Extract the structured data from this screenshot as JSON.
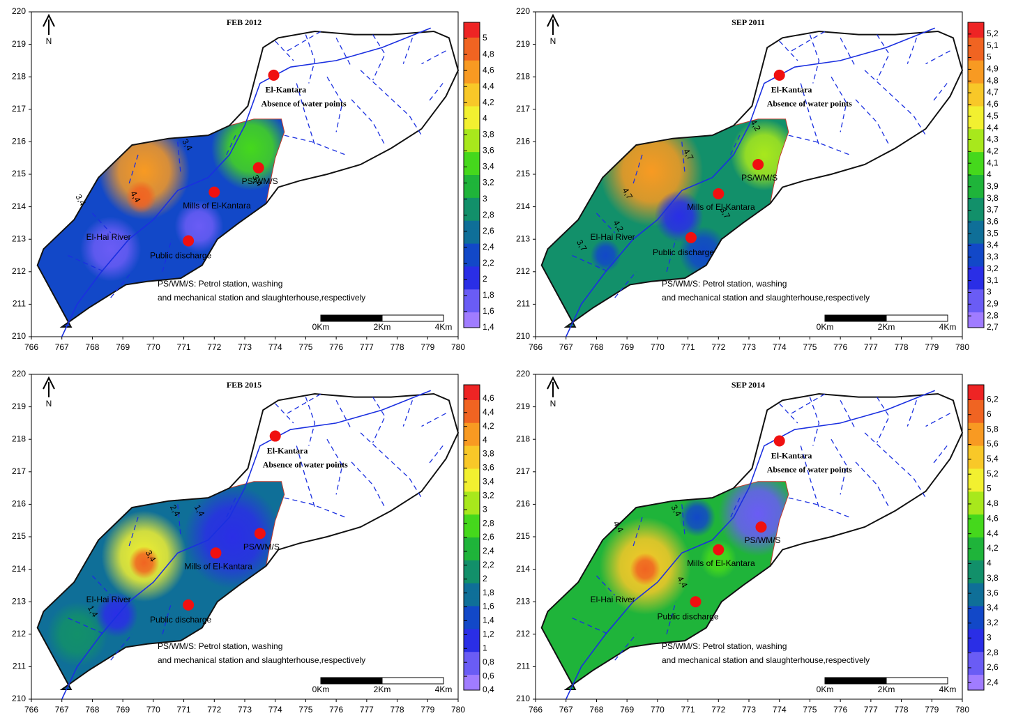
{
  "colormap": [
    "#a07cff",
    "#6a5cf5",
    "#2a2ee6",
    "#1248c8",
    "#0f6f98",
    "#12906a",
    "#1fb43a",
    "#45d81c",
    "#a8e81c",
    "#f2f030",
    "#f8c828",
    "#f89a22",
    "#f06422",
    "#ee2424"
  ],
  "panels": [
    {
      "title": "FEB 2012",
      "north": "N",
      "xlim": [
        766,
        780
      ],
      "ylim": [
        210,
        220
      ],
      "xticks": [
        766,
        767,
        768,
        769,
        770,
        771,
        772,
        773,
        774,
        775,
        776,
        777,
        778,
        779,
        780
      ],
      "yticks": [
        210,
        211,
        212,
        213,
        214,
        215,
        216,
        217,
        218,
        219,
        220
      ],
      "colorbar": {
        "range": [
          1.4,
          5.2
        ],
        "ticks": [
          {
            "value": 1.4,
            "label": "1,4"
          },
          {
            "value": 1.6,
            "label": "1,6"
          },
          {
            "value": 1.8,
            "label": "1,8"
          },
          2,
          {
            "value": 2.2,
            "label": "2,2"
          },
          {
            "value": 2.4,
            "label": "2,4"
          },
          {
            "value": 2.6,
            "label": "2,6"
          },
          {
            "value": 2.8,
            "label": "2,8"
          },
          3,
          {
            "value": 3.2,
            "label": "3,2"
          },
          {
            "value": 3.4,
            "label": "3,4"
          },
          {
            "value": 3.6,
            "label": "3,6"
          },
          {
            "value": 3.8,
            "label": "3,8"
          },
          4,
          {
            "value": 4.2,
            "label": "4,2"
          },
          {
            "value": 4.4,
            "label": "4,4"
          },
          {
            "value": 4.6,
            "label": "4,6"
          },
          {
            "value": 4.8,
            "label": "4,8"
          },
          5
        ]
      },
      "sites": [
        {
          "label": "El-Kantara",
          "x": 773.95,
          "y": 218.05
        },
        {
          "label": "PS/WM/S",
          "x": 773.45,
          "y": 215.2
        },
        {
          "label": "Mills of El-Kantara",
          "x": 772.0,
          "y": 214.45
        },
        {
          "label": "Public discharge",
          "x": 771.15,
          "y": 212.95
        }
      ],
      "annotation": "Absence of water points",
      "river_label": "El-Hai River",
      "contours": [
        {
          "value": 3.4,
          "label": "3,4",
          "x": 771.1,
          "y": 215.9
        },
        {
          "value": 4.4,
          "label": "4,4",
          "x": 769.4,
          "y": 214.3
        },
        {
          "value": 3.4,
          "label": "3,4",
          "x": 767.6,
          "y": 214.2
        },
        {
          "value": 3.4,
          "label": "3,4",
          "x": 773.4,
          "y": 214.8
        }
      ],
      "notes": [
        "PS/WM/S: Petrol station, washing",
        "and mechanical station and slaughterhouse,respectively"
      ],
      "scale_labels": [
        "0Km",
        "2Km",
        "4Km"
      ]
    },
    {
      "title": "SEP 2011",
      "north": "N",
      "xlim": [
        766,
        780
      ],
      "ylim": [
        210,
        220
      ],
      "xticks": [
        766,
        767,
        768,
        769,
        770,
        771,
        772,
        773,
        774,
        775,
        776,
        777,
        778,
        779,
        780
      ],
      "yticks": [
        210,
        211,
        212,
        213,
        214,
        215,
        216,
        217,
        218,
        219,
        220
      ],
      "colorbar": {
        "range": [
          2.7,
          5.3
        ],
        "ticks": [
          {
            "value": 2.7,
            "label": "2,7"
          },
          {
            "value": 2.8,
            "label": "2,8"
          },
          {
            "value": 2.9,
            "label": "2,9"
          },
          3,
          {
            "value": 3.1,
            "label": "3,1"
          },
          {
            "value": 3.2,
            "label": "3,2"
          },
          {
            "value": 3.3,
            "label": "3,3"
          },
          {
            "value": 3.4,
            "label": "3,4"
          },
          {
            "value": 3.5,
            "label": "3,5"
          },
          {
            "value": 3.6,
            "label": "3,6"
          },
          {
            "value": 3.7,
            "label": "3,7"
          },
          {
            "value": 3.8,
            "label": "3,8"
          },
          {
            "value": 3.9,
            "label": "3,9"
          },
          4,
          {
            "value": 4.1,
            "label": "4,1"
          },
          {
            "value": 4.2,
            "label": "4,2"
          },
          {
            "value": 4.3,
            "label": "4,3"
          },
          {
            "value": 4.4,
            "label": "4,4"
          },
          {
            "value": 4.5,
            "label": "4,5"
          },
          {
            "value": 4.6,
            "label": "4,6"
          },
          {
            "value": 4.7,
            "label": "4,7"
          },
          {
            "value": 4.8,
            "label": "4,8"
          },
          {
            "value": 4.9,
            "label": "4,9"
          },
          5,
          {
            "value": 5.1,
            "label": "5,1"
          },
          {
            "value": 5.2,
            "label": "5,2"
          }
        ]
      },
      "sites": [
        {
          "label": "El-Kantara",
          "x": 774.0,
          "y": 218.05
        },
        {
          "label": "PS/WM/S",
          "x": 773.3,
          "y": 215.3
        },
        {
          "label": "Mills of El-Kantara",
          "x": 772.0,
          "y": 214.4
        },
        {
          "label": "Public discharge",
          "x": 771.1,
          "y": 213.05
        }
      ],
      "annotation": "Absence of water points",
      "river_label": "El-Hai River",
      "contours": [
        {
          "value": 4.2,
          "label": "4,2",
          "x": 773.2,
          "y": 216.5
        },
        {
          "value": 4.7,
          "label": "4,7",
          "x": 771.0,
          "y": 215.6
        },
        {
          "value": 4.7,
          "label": "4,7",
          "x": 769.0,
          "y": 214.4
        },
        {
          "value": 4.2,
          "label": "4,2",
          "x": 768.7,
          "y": 213.4
        },
        {
          "value": 3.7,
          "label": "3,7",
          "x": 767.5,
          "y": 212.8
        },
        {
          "value": 3.7,
          "label": "3,7",
          "x": 772.2,
          "y": 213.8
        }
      ],
      "notes": [
        "PS/WM/S: Petrol station, washing",
        "and mechanical station and slaughterhouse,respectively"
      ],
      "scale_labels": [
        "0Km",
        "2Km",
        "4Km"
      ]
    },
    {
      "title": "FEB 2015",
      "north": "N",
      "xlim": [
        766,
        780
      ],
      "ylim": [
        210,
        220
      ],
      "xticks": [
        766,
        767,
        768,
        769,
        770,
        771,
        772,
        773,
        774,
        775,
        776,
        777,
        778,
        779,
        780
      ],
      "yticks": [
        210,
        211,
        212,
        213,
        214,
        215,
        216,
        217,
        218,
        219,
        220
      ],
      "colorbar": {
        "range": [
          0.4,
          4.8
        ],
        "ticks": [
          {
            "value": 0.4,
            "label": "0,4"
          },
          {
            "value": 0.6,
            "label": "0,6"
          },
          {
            "value": 0.8,
            "label": "0,8"
          },
          1,
          {
            "value": 1.2,
            "label": "1,2"
          },
          {
            "value": 1.4,
            "label": "1,4"
          },
          {
            "value": 1.6,
            "label": "1,6"
          },
          {
            "value": 1.8,
            "label": "1,8"
          },
          2,
          {
            "value": 2.2,
            "label": "2,2"
          },
          {
            "value": 2.4,
            "label": "2,4"
          },
          {
            "value": 2.6,
            "label": "2,6"
          },
          {
            "value": 2.8,
            "label": "2,8"
          },
          3,
          {
            "value": 3.2,
            "label": "3,2"
          },
          {
            "value": 3.4,
            "label": "3,4"
          },
          {
            "value": 3.6,
            "label": "3,6"
          },
          {
            "value": 3.8,
            "label": "3,8"
          },
          4,
          {
            "value": 4.2,
            "label": "4,2"
          },
          {
            "value": 4.4,
            "label": "4,4"
          },
          {
            "value": 4.6,
            "label": "4,6"
          }
        ]
      },
      "sites": [
        {
          "label": "El-Kantara",
          "x": 774.0,
          "y": 218.1
        },
        {
          "label": "PS/WM/S",
          "x": 773.5,
          "y": 215.1
        },
        {
          "label": "Mills of El-Kantara",
          "x": 772.05,
          "y": 214.5
        },
        {
          "label": "Public discharge",
          "x": 771.15,
          "y": 212.9
        }
      ],
      "annotation": "Absence of water points",
      "river_label": "El-Hai River",
      "contours": [
        {
          "value": 2.4,
          "label": "2,4",
          "x": 770.7,
          "y": 215.8
        },
        {
          "value": 1.4,
          "label": "1,4",
          "x": 771.5,
          "y": 215.8
        },
        {
          "value": 3.4,
          "label": "3,4",
          "x": 769.9,
          "y": 214.4
        },
        {
          "value": 1.4,
          "label": "1,4",
          "x": 768.0,
          "y": 212.7
        }
      ],
      "notes": [
        "PS/WM/S: Petrol station, washing",
        "and mechanical station and slaughterhouse,respectively"
      ],
      "scale_labels": [
        "0Km",
        "2Km",
        "4Km"
      ]
    },
    {
      "title": "SEP 2014",
      "north": "N",
      "xlim": [
        766,
        780
      ],
      "ylim": [
        210,
        220
      ],
      "xticks": [
        766,
        767,
        768,
        769,
        770,
        771,
        772,
        773,
        774,
        775,
        776,
        777,
        778,
        779,
        780
      ],
      "yticks": [
        210,
        211,
        212,
        213,
        214,
        215,
        216,
        217,
        218,
        219,
        220
      ],
      "colorbar": {
        "range": [
          2.3,
          6.4
        ],
        "ticks": [
          {
            "value": 2.4,
            "label": "2,4"
          },
          {
            "value": 2.6,
            "label": "2,6"
          },
          {
            "value": 2.8,
            "label": "2,8"
          },
          3,
          {
            "value": 3.2,
            "label": "3,2"
          },
          {
            "value": 3.4,
            "label": "3,4"
          },
          {
            "value": 3.6,
            "label": "3,6"
          },
          {
            "value": 3.8,
            "label": "3,8"
          },
          4,
          {
            "value": 4.2,
            "label": "4,2"
          },
          {
            "value": 4.4,
            "label": "4,4"
          },
          {
            "value": 4.6,
            "label": "4,6"
          },
          {
            "value": 4.8,
            "label": "4,8"
          },
          5,
          {
            "value": 5.2,
            "label": "5,2"
          },
          {
            "value": 5.4,
            "label": "5,4"
          },
          {
            "value": 5.6,
            "label": "5,6"
          },
          {
            "value": 5.8,
            "label": "5,8"
          },
          6,
          {
            "value": 6.2,
            "label": "6,2"
          }
        ]
      },
      "sites": [
        {
          "label": "El-Kantara",
          "x": 774.0,
          "y": 217.95
        },
        {
          "label": "PS/WM/S",
          "x": 773.4,
          "y": 215.3
        },
        {
          "label": "Mills of El-Kantara",
          "x": 772.0,
          "y": 214.6
        },
        {
          "label": "Public discharge",
          "x": 771.25,
          "y": 213.0
        }
      ],
      "annotation": "Absence of water points",
      "river_label": "El-Hai River",
      "contours": [
        {
          "value": 4.4,
          "label": "4,4",
          "x": 768.7,
          "y": 215.3
        },
        {
          "value": 3.4,
          "label": "3,4",
          "x": 770.6,
          "y": 215.8
        },
        {
          "value": 4.4,
          "label": "4,4",
          "x": 770.8,
          "y": 213.6
        }
      ],
      "notes": [
        "PS/WM/S: Petrol station, washing",
        "and mechanical station and slaughterhouse,respectively"
      ],
      "scale_labels": [
        "0Km",
        "2Km",
        "4Km"
      ]
    }
  ]
}
